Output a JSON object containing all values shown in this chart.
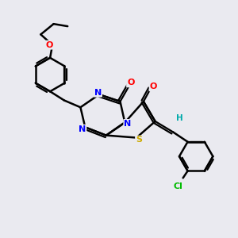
{
  "background_color": "#eaeaf0",
  "bond_color": "#000000",
  "atom_colors": {
    "O": "#ff0000",
    "N": "#0000ff",
    "S": "#ccaa00",
    "Cl": "#00bb00",
    "H": "#00aaaa",
    "C": "#000000"
  },
  "figsize": [
    3.0,
    3.0
  ],
  "dpi": 100,
  "xlim": [
    0,
    10
  ],
  "ylim": [
    0,
    10
  ]
}
